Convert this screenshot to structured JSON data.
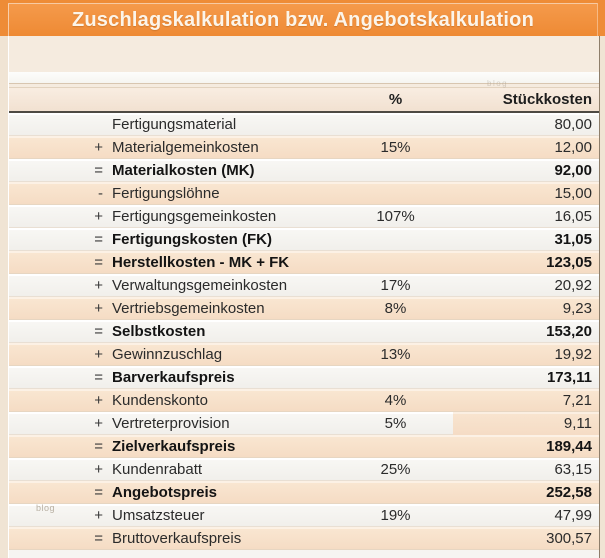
{
  "title": "Zuschlagskalkulation bzw. Angebotskalkulation",
  "watermark": {
    "text": "blog"
  },
  "colors": {
    "accent_orange": "#EE8C37",
    "row_peach": "#F8E3CE",
    "row_white": "#F7F6F3",
    "page_cream": "#F0E4D4",
    "header_rule": "#4E4A43"
  },
  "table": {
    "headers": {
      "percent": "%",
      "unit_cost": "Stückkosten"
    },
    "rows": [
      {
        "op": "",
        "label": "Fertigungsmaterial",
        "percent": "",
        "value": "80,00"
      },
      {
        "op": "+",
        "label": "Materialgemeinkosten",
        "percent": "15%",
        "value": "12,00"
      },
      {
        "op": "=",
        "label": "Materialkosten (MK)",
        "percent": "",
        "value": "92,00"
      },
      {
        "op": "-",
        "label": "Fertigungslöhne",
        "percent": "",
        "value": "15,00"
      },
      {
        "op": "+",
        "label": "Fertigungsgemeinkosten",
        "percent": "107%",
        "value": "16,05"
      },
      {
        "op": "=",
        "label": "Fertigungskosten (FK)",
        "percent": "",
        "value": "31,05"
      },
      {
        "op": "=",
        "label": "Herstellkosten - MK + FK",
        "percent": "",
        "value": "123,05"
      },
      {
        "op": "+",
        "label": "Verwaltungsgemeinkosten",
        "percent": "17%",
        "value": "20,92"
      },
      {
        "op": "+",
        "label": "Vertriebsgemeinkosten",
        "percent": "8%",
        "value": "9,23"
      },
      {
        "op": "=",
        "label": "Selbstkosten",
        "percent": "",
        "value": "153,20"
      },
      {
        "op": "+",
        "label": "Gewinnzuschlag",
        "percent": "13%",
        "value": "19,92"
      },
      {
        "op": "=",
        "label": "Barverkaufspreis",
        "percent": "",
        "value": "173,11"
      },
      {
        "op": "+",
        "label": "Kundenskonto",
        "percent": "4%",
        "value": "7,21"
      },
      {
        "op": "+",
        "label": "Vertreterprovision",
        "percent": "5%",
        "value": "9,11"
      },
      {
        "op": "=",
        "label": "Zielverkaufspreis",
        "percent": "",
        "value": "189,44"
      },
      {
        "op": "+",
        "label": "Kundenrabatt",
        "percent": "25%",
        "value": "63,15"
      },
      {
        "op": "=",
        "label": "Angebotspreis",
        "percent": "",
        "value": "252,58"
      },
      {
        "op": "+",
        "label": "Umsatzsteuer",
        "percent": "19%",
        "value": "47,99"
      },
      {
        "op": "=",
        "label": "Bruttoverkaufspreis",
        "percent": "",
        "value": "300,57"
      }
    ]
  }
}
